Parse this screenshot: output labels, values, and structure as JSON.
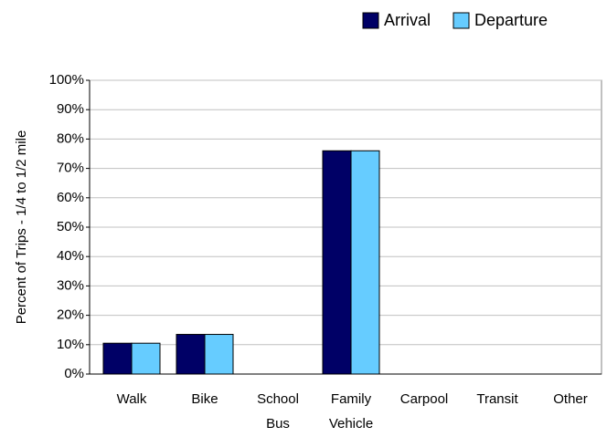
{
  "chart_data": {
    "type": "bar",
    "y_label": "Percent of Trips - 1/4 to 1/2 mile",
    "categories": [
      "Walk",
      "Bike",
      "School Bus",
      "Family Vehicle",
      "Carpool",
      "Transit",
      "Other"
    ],
    "series": [
      {
        "name": "Arrival",
        "color": "#000066",
        "values": [
          10.5,
          13.5,
          0,
          76,
          0,
          0,
          0
        ]
      },
      {
        "name": "Departure",
        "color": "#66ccff",
        "values": [
          10.5,
          13.5,
          0,
          76,
          0,
          0,
          0
        ]
      }
    ],
    "ylim": [
      0,
      100
    ],
    "yticks": [
      {
        "value": 0,
        "label": "0%"
      },
      {
        "value": 10,
        "label": "10%"
      },
      {
        "value": 20,
        "label": "20%"
      },
      {
        "value": 30,
        "label": "30%"
      },
      {
        "value": 40,
        "label": "40%"
      },
      {
        "value": 50,
        "label": "50%"
      },
      {
        "value": 60,
        "label": "60%"
      },
      {
        "value": 70,
        "label": "70%"
      },
      {
        "value": 80,
        "label": "80%"
      },
      {
        "value": 90,
        "label": "90%"
      },
      {
        "value": 100,
        "label": "100%"
      }
    ],
    "grid": true,
    "legend": "top-right"
  }
}
